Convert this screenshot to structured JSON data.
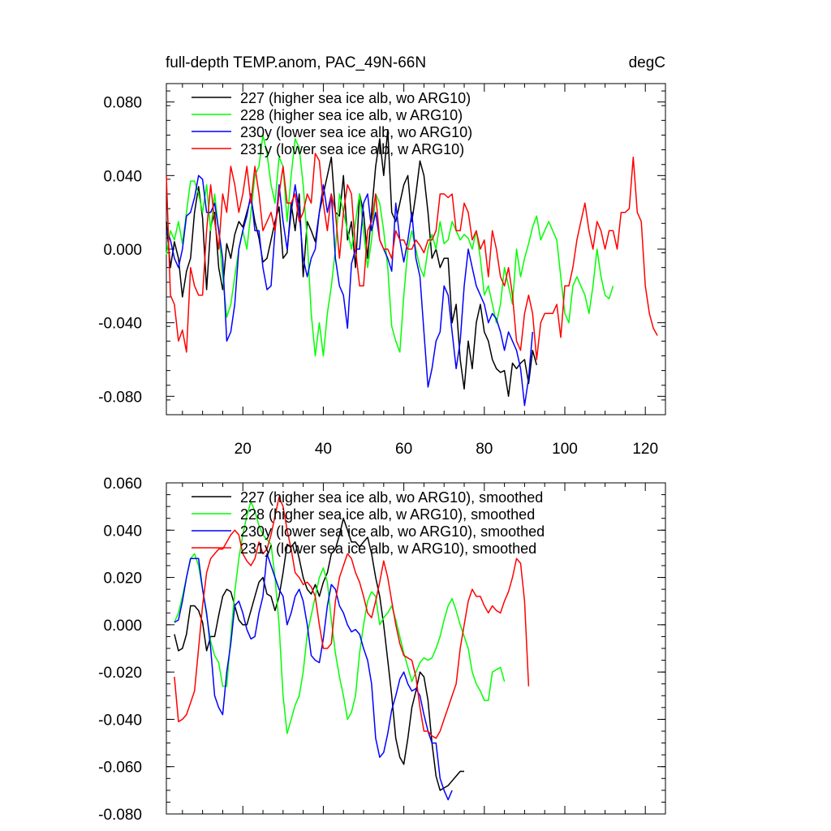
{
  "figure": {
    "title_left": "full-depth TEMP.anom, PAC_49N-66N",
    "title_right": "degC"
  },
  "chart_data": [
    {
      "type": "line",
      "panel": "top",
      "title": "full-depth TEMP.anom, PAC_49N-66N",
      "units": "degC",
      "xlim": [
        1,
        125
      ],
      "ylim": [
        -0.09,
        0.09
      ],
      "xticks": [
        20,
        40,
        60,
        80,
        100,
        120
      ],
      "xtick_labels": [
        "20",
        "40",
        "60",
        "80",
        "100",
        "120"
      ],
      "yticks": [
        -0.08,
        -0.04,
        0.0,
        0.04,
        0.08
      ],
      "ytick_labels": [
        "-0.080",
        "-0.040",
        "0.000",
        "0.040",
        "0.080"
      ],
      "series": [
        {
          "name": "227 (higher sea ice alb, wo ARG10)",
          "color": "#000000",
          "x0": 1,
          "values": [
            0.015,
            -0.01,
            0.004,
            -0.005,
            -0.026,
            -0.012,
            -0.005,
            0.02,
            0.034,
            0.017,
            -0.022,
            0.012,
            0.02,
            -0.01,
            -0.022,
            0.003,
            -0.005,
            0.008,
            0.015,
            0.012,
            0.02,
            0.028,
            0.015,
            0.006,
            -0.007,
            -0.005,
            0.005,
            0.015,
            0.023,
            -0.005,
            -0.002,
            0.025,
            0.01,
            0.03,
            -0.015,
            0.015,
            0.01,
            0.004,
            0.02,
            0.03,
            0.04,
            0.05,
            0.02,
            0.018,
            0.04,
            0.005,
            0.015,
            -0.01,
            0.03,
            0.02,
            -0.005,
            0.02,
            0.045,
            0.06,
            0.04,
            0.065,
            0.02,
            0.015,
            0.025,
            0.035,
            0.04,
            0.015,
            0.03,
            0.048,
            0.04,
            0.02,
            -0.005,
            0.0,
            -0.01,
            -0.005,
            -0.005,
            -0.04,
            -0.03,
            -0.06,
            -0.076,
            -0.05,
            -0.065,
            -0.04,
            -0.03,
            -0.045,
            -0.05,
            -0.06,
            -0.065,
            -0.067,
            -0.066,
            -0.08,
            -0.062,
            -0.065,
            -0.062,
            -0.06,
            -0.073,
            -0.055,
            -0.063
          ]
        },
        {
          "name": "228 (higher sea ice alb, w ARG10)",
          "color": "#00ff00",
          "x0": 1,
          "values": [
            -0.003,
            0.01,
            0.005,
            0.015,
            0.003,
            0.02,
            0.037,
            0.037,
            0.03,
            0.02,
            0.035,
            0.01,
            0.03,
            0.01,
            -0.015,
            -0.037,
            -0.03,
            -0.015,
            0.0,
            0.01,
            0.0,
            0.02,
            0.04,
            0.045,
            0.062,
            0.052,
            0.035,
            0.025,
            0.05,
            0.045,
            0.015,
            0.04,
            0.06,
            0.055,
            0.035,
            0.005,
            -0.035,
            -0.058,
            -0.04,
            -0.058,
            -0.035,
            -0.02,
            0.0,
            0.03,
            0.02,
            0.01,
            0.0,
            0.015,
            0.03,
            0.01,
            -0.01,
            0.005,
            0.03,
            0.025,
            0.01,
            -0.01,
            -0.042,
            -0.05,
            -0.056,
            -0.025,
            0.0,
            0.01,
            0.0,
            -0.01,
            -0.015,
            0.0,
            0.008,
            0.0,
            0.015,
            0.003,
            0.005,
            0.015,
            0.01,
            0.005,
            0.008,
            0.006,
            0.0,
            0.01,
            -0.005,
            -0.025,
            -0.02,
            -0.03,
            -0.04,
            -0.03,
            -0.01,
            -0.02,
            -0.03,
            0.0,
            -0.015,
            -0.005,
            0.003,
            0.012,
            0.018,
            0.005,
            0.01,
            0.015,
            0.01,
            0.005,
            -0.015,
            -0.035,
            -0.04,
            -0.02,
            -0.015,
            -0.02,
            -0.025,
            -0.035,
            -0.02,
            0.0,
            -0.015,
            -0.025,
            -0.027,
            -0.02
          ]
        },
        {
          "name": "230y (lower sea ice alb, wo ARG10)",
          "color": "#0000ff",
          "x0": 1,
          "values": [
            0.01,
            0.005,
            -0.005,
            -0.01,
            0.0,
            0.018,
            0.02,
            0.028,
            0.04,
            0.038,
            0.02,
            0.02,
            0.025,
            0.01,
            -0.005,
            -0.05,
            -0.045,
            -0.03,
            0.0,
            0.01,
            0.018,
            0.03,
            0.01,
            0.01,
            -0.01,
            -0.022,
            -0.02,
            0.01,
            0.035,
            0.015,
            0.0,
            0.02,
            0.035,
            0.02,
            -0.005,
            -0.015,
            -0.005,
            0.0,
            0.02,
            0.035,
            0.02,
            0.03,
            -0.005,
            -0.02,
            -0.025,
            -0.043,
            -0.008,
            0.0,
            0.0,
            0.025,
            0.03,
            0.01,
            0.02,
            0.005,
            0.0,
            -0.005,
            -0.012,
            0.025,
            0.005,
            -0.007,
            0.005,
            0.02,
            -0.005,
            -0.015,
            -0.045,
            -0.075,
            -0.065,
            -0.05,
            -0.045,
            -0.02,
            -0.025,
            -0.045,
            -0.065,
            -0.05,
            -0.02,
            0.0,
            -0.01,
            -0.02,
            -0.025,
            -0.03,
            -0.04,
            -0.035,
            -0.038,
            -0.045,
            -0.055,
            -0.045,
            -0.05,
            -0.055,
            -0.065,
            -0.085,
            -0.07,
            -0.045
          ]
        },
        {
          "name": "231y (lower sea ice alb, w ARG10)",
          "color": "#ff0000",
          "x0": 1,
          "values": [
            0.04,
            -0.025,
            -0.03,
            -0.05,
            -0.044,
            -0.056,
            -0.01,
            -0.02,
            -0.025,
            -0.025,
            0.01,
            0.035,
            0.015,
            0.0,
            0.03,
            0.02,
            0.045,
            0.035,
            0.02,
            0.03,
            0.045,
            0.025,
            0.045,
            0.03,
            0.01,
            0.015,
            0.02,
            0.01,
            0.03,
            0.045,
            0.025,
            0.025,
            0.03,
            0.015,
            0.02,
            0.03,
            0.025,
            0.052,
            0.048,
            0.025,
            0.01,
            0.03,
            0.02,
            -0.005,
            0.02,
            0.035,
            0.03,
            0.0,
            -0.02,
            -0.02,
            0.01,
            0.015,
            0.03,
            0.005,
            0.0,
            0.0,
            -0.005,
            0.01,
            0.005,
            0.005,
            0.0,
            0.0,
            0.005,
            0.002,
            -0.002,
            0.005,
            0.005,
            0.01,
            0.03,
            0.03,
            0.028,
            0.03,
            0.01,
            0.01,
            0.025,
            0.02,
            0.005,
            0.01,
            0.0,
            0.005,
            -0.015,
            0.01,
            0.0,
            -0.015,
            -0.02,
            -0.01,
            -0.025,
            -0.05,
            -0.055,
            -0.035,
            -0.025,
            -0.035,
            -0.06,
            -0.04,
            -0.035,
            -0.035,
            -0.035,
            -0.03,
            -0.048,
            -0.02,
            -0.02,
            -0.01,
            0.005,
            0.015,
            0.025,
            0.01,
            0.0,
            0.015,
            0.01,
            0.0,
            0.01,
            0.01,
            0.0,
            0.02,
            0.02,
            0.022,
            0.05,
            0.02,
            0.015,
            -0.02,
            -0.035,
            -0.043,
            -0.047
          ]
        }
      ]
    },
    {
      "type": "line",
      "panel": "bottom",
      "xlim": [
        1,
        125
      ],
      "ylim": [
        -0.08,
        0.06
      ],
      "xticks": [
        20,
        40,
        60,
        80,
        100,
        120
      ],
      "yticks": [
        -0.08,
        -0.06,
        -0.04,
        -0.02,
        0.0,
        0.02,
        0.04,
        0.06
      ],
      "ytick_labels": [
        "-0.080",
        "-0.060",
        "-0.040",
        "-0.020",
        "0.000",
        "0.020",
        "0.040",
        "0.060"
      ],
      "series": [
        {
          "name": "227 (higher sea ice alb, wo ARG10), smoothed",
          "color": "#000000",
          "x0": 3,
          "values": [
            -0.004,
            -0.011,
            -0.01,
            -0.004,
            0.008,
            0.008,
            0.006,
            0.001,
            -0.011,
            -0.005,
            -0.005,
            0.004,
            0.012,
            0.015,
            0.014,
            0.008,
            0.002,
            0.0,
            0.0,
            0.006,
            0.012,
            0.018,
            0.02,
            0.013,
            0.012,
            0.006,
            0.012,
            0.022,
            0.034,
            0.033,
            0.035,
            0.028,
            0.02,
            0.015,
            0.013,
            0.017,
            0.012,
            0.018,
            0.022,
            0.03,
            0.032,
            0.038,
            0.045,
            0.04,
            0.035,
            0.035,
            0.033,
            0.035,
            0.037,
            0.03,
            0.02,
            0.012,
            0.0,
            -0.015,
            -0.03,
            -0.048,
            -0.056,
            -0.059,
            -0.048,
            -0.035,
            -0.028,
            -0.02,
            -0.022,
            -0.032,
            -0.05,
            -0.064,
            -0.07,
            -0.069,
            -0.068,
            -0.066,
            -0.064,
            -0.062,
            -0.062
          ]
        },
        {
          "name": "228 (higher sea ice alb, w ARG10), smoothed",
          "color": "#00ff00",
          "x0": 3,
          "values": [
            0.001,
            0.005,
            0.012,
            0.02,
            0.028,
            0.03,
            0.025,
            0.015,
            0.004,
            -0.007,
            -0.013,
            -0.016,
            -0.026,
            -0.026,
            -0.005,
            0.014,
            0.028,
            0.038,
            0.046,
            0.052,
            0.048,
            0.042,
            0.038,
            0.036,
            0.034,
            0.02,
            0.0,
            -0.03,
            -0.046,
            -0.04,
            -0.034,
            -0.03,
            -0.02,
            -0.004,
            0.004,
            0.012,
            0.02,
            0.024,
            0.018,
            0.002,
            -0.012,
            -0.022,
            -0.03,
            -0.04,
            -0.037,
            -0.03,
            -0.012,
            0.0,
            0.01,
            0.014,
            0.012,
            0.0,
            0.003,
            0.005,
            0.008,
            0.002,
            -0.005,
            -0.012,
            -0.018,
            -0.024,
            -0.02,
            -0.016,
            -0.014,
            -0.015,
            -0.014,
            -0.01,
            -0.005,
            0.002,
            0.008,
            0.011,
            0.006,
            0.0,
            -0.005,
            -0.01,
            -0.02,
            -0.025,
            -0.028,
            -0.032,
            -0.032,
            -0.02,
            -0.019,
            -0.018,
            -0.024
          ]
        },
        {
          "name": "230y (lower sea ice alb, wo ARG10), smoothed",
          "color": "#0000ff",
          "x0": 3,
          "values": [
            0.001,
            0.002,
            0.01,
            0.02,
            0.028,
            0.028,
            0.028,
            0.015,
            0.005,
            -0.01,
            -0.03,
            -0.035,
            -0.038,
            -0.02,
            -0.008,
            0.008,
            0.01,
            0.005,
            -0.002,
            -0.006,
            -0.005,
            0.005,
            0.012,
            0.03,
            0.025,
            0.02,
            0.015,
            0.012,
            0.0,
            0.005,
            0.012,
            0.015,
            0.01,
            0.0,
            -0.013,
            -0.015,
            -0.016,
            -0.006,
            0.008,
            0.017,
            0.015,
            0.008,
            0.005,
            0.0,
            -0.003,
            -0.002,
            -0.004,
            -0.01,
            -0.015,
            -0.025,
            -0.048,
            -0.056,
            -0.054,
            -0.046,
            -0.036,
            -0.03,
            -0.023,
            -0.02,
            -0.025,
            -0.028,
            -0.027,
            -0.03,
            -0.038,
            -0.045,
            -0.05,
            -0.05,
            -0.065,
            -0.07,
            -0.074,
            -0.07
          ]
        },
        {
          "name": "231y (lower sea ice alb, w ARG10), smoothed",
          "color": "#ff0000",
          "x0": 3,
          "values": [
            -0.022,
            -0.041,
            -0.04,
            -0.038,
            -0.033,
            -0.028,
            -0.01,
            0.008,
            0.022,
            0.028,
            0.03,
            0.032,
            0.032,
            0.035,
            0.038,
            0.04,
            0.038,
            0.03,
            0.027,
            0.025,
            0.028,
            0.035,
            0.03,
            0.032,
            0.038,
            0.046,
            0.054,
            0.05,
            0.04,
            0.032,
            0.022,
            0.02,
            0.017,
            0.018,
            0.016,
            0.012,
            0.0,
            -0.01,
            -0.01,
            -0.008,
            0.01,
            0.02,
            0.025,
            0.03,
            0.028,
            0.022,
            0.018,
            0.012,
            0.005,
            0.003,
            0.01,
            0.018,
            0.027,
            0.02,
            0.01,
            0.0,
            -0.008,
            -0.013,
            -0.014,
            -0.015,
            -0.022,
            -0.035,
            -0.045,
            -0.045,
            -0.047,
            -0.048,
            -0.045,
            -0.04,
            -0.035,
            -0.03,
            -0.025,
            -0.01,
            0.0,
            0.01,
            0.015,
            0.012,
            0.012,
            0.008,
            0.005,
            0.008,
            0.006,
            0.005,
            0.01,
            0.014,
            0.02,
            0.028,
            0.026,
            0.01,
            -0.026
          ]
        }
      ]
    }
  ]
}
